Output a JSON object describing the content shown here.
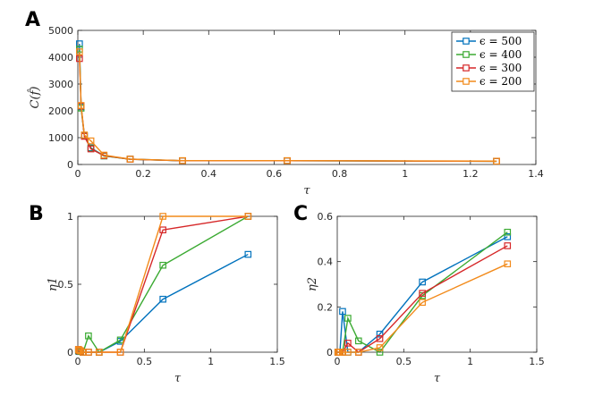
{
  "figure": {
    "panels": [
      {
        "label": "A"
      },
      {
        "label": "B"
      },
      {
        "label": "C"
      }
    ]
  },
  "chart_data": [
    {
      "type": "line",
      "panel": "A",
      "title": "",
      "xlabel": "τ",
      "ylabel": "C(f̂)",
      "xlim": [
        0,
        1.4
      ],
      "ylim": [
        0,
        5000
      ],
      "xticks": [
        0,
        0.2,
        0.4,
        0.6,
        0.8,
        1,
        1.2,
        1.4
      ],
      "xtick_labels": [
        "0",
        "0.2",
        "0.4",
        "0.6",
        "0.8",
        "1",
        "1.2",
        "1.4"
      ],
      "yticks": [
        0,
        1000,
        2000,
        3000,
        4000,
        5000
      ],
      "ytick_labels": [
        "0",
        "1000",
        "2000",
        "3000",
        "4000",
        "5000"
      ],
      "legend_position": "top-right",
      "x": [
        0.005,
        0.01,
        0.02,
        0.04,
        0.08,
        0.16,
        0.32,
        0.64,
        1.28
      ],
      "series": [
        {
          "name": "ϵ = 500",
          "color": "#0072BD",
          "values": [
            4500,
            2150,
            1080,
            620,
            320,
            200,
            140,
            140,
            120
          ]
        },
        {
          "name": "ϵ = 400",
          "color": "#3BAA32",
          "values": [
            4300,
            2100,
            1060,
            600,
            320,
            195,
            140,
            140,
            120
          ]
        },
        {
          "name": "ϵ = 300",
          "color": "#D62728",
          "values": [
            3950,
            2180,
            1050,
            580,
            330,
            195,
            140,
            140,
            120
          ]
        },
        {
          "name": "ϵ = 200",
          "color": "#F28A1A",
          "values": [
            4200,
            2200,
            1100,
            880,
            350,
            200,
            145,
            145,
            125
          ]
        }
      ]
    },
    {
      "type": "line",
      "panel": "B",
      "title": "",
      "xlabel": "τ",
      "ylabel": "η1",
      "xlim": [
        0,
        1.5
      ],
      "ylim": [
        0,
        1
      ],
      "xticks": [
        0,
        0.5,
        1,
        1.5
      ],
      "xtick_labels": [
        "0",
        "0.5",
        "1",
        "1.5"
      ],
      "yticks": [
        0,
        0.5,
        1
      ],
      "ytick_labels": [
        "0",
        "0.5",
        "1"
      ],
      "x": [
        0.005,
        0.01,
        0.02,
        0.04,
        0.08,
        0.16,
        0.32,
        0.64,
        1.28
      ],
      "series": [
        {
          "name": "ϵ = 500",
          "color": "#0072BD",
          "values": [
            0.01,
            0.005,
            0.005,
            0.0,
            0.0,
            0.0,
            0.08,
            0.39,
            0.72
          ]
        },
        {
          "name": "ϵ = 400",
          "color": "#3BAA32",
          "values": [
            0.01,
            0.01,
            0.005,
            0.0,
            0.12,
            0.0,
            0.09,
            0.64,
            1.0
          ]
        },
        {
          "name": "ϵ = 300",
          "color": "#D62728",
          "values": [
            0.02,
            0.01,
            0.01,
            0.0,
            0.0,
            0.0,
            0.0,
            0.9,
            1.0
          ]
        },
        {
          "name": "ϵ = 200",
          "color": "#F28A1A",
          "values": [
            0.02,
            0.015,
            0.01,
            0.0,
            0.0,
            0.0,
            0.0,
            1.0,
            1.0
          ]
        }
      ]
    },
    {
      "type": "line",
      "panel": "C",
      "title": "",
      "xlabel": "τ",
      "ylabel": "η2",
      "xlim": [
        0,
        1.5
      ],
      "ylim": [
        0,
        0.6
      ],
      "xticks": [
        0,
        0.5,
        1,
        1.5
      ],
      "xtick_labels": [
        "0",
        "0.5",
        "1",
        "1.5"
      ],
      "yticks": [
        0,
        0.2,
        0.4,
        0.6
      ],
      "ytick_labels": [
        "0",
        "0.2",
        "0.4",
        "0.6"
      ],
      "x": [
        0.005,
        0.01,
        0.02,
        0.04,
        0.08,
        0.16,
        0.32,
        0.64,
        1.28
      ],
      "series": [
        {
          "name": "ϵ = 500",
          "color": "#0072BD",
          "values": [
            0.0,
            0.0,
            0.0,
            0.18,
            0.0,
            0.0,
            0.08,
            0.31,
            0.51
          ]
        },
        {
          "name": "ϵ = 400",
          "color": "#3BAA32",
          "values": [
            0.0,
            0.0,
            0.0,
            0.0,
            0.15,
            0.05,
            0.0,
            0.25,
            0.53
          ]
        },
        {
          "name": "ϵ = 300",
          "color": "#D62728",
          "values": [
            0.0,
            0.0,
            0.0,
            0.0,
            0.04,
            0.0,
            0.06,
            0.26,
            0.47
          ]
        },
        {
          "name": "ϵ = 200",
          "color": "#F28A1A",
          "values": [
            0.0,
            0.0,
            0.0,
            0.0,
            0.0,
            0.0,
            0.02,
            0.22,
            0.39
          ]
        }
      ]
    }
  ]
}
